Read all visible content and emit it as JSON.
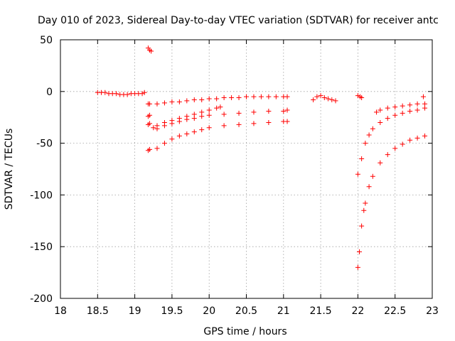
{
  "chart_data": {
    "type": "scatter",
    "title": "Day 010 of 2023, Sidereal Day-to-day VTEC variation (SDTVAR) for receiver antc",
    "xlabel": "GPS time / hours",
    "ylabel": "SDTVAR / TECUs",
    "xlim": [
      18,
      23
    ],
    "ylim": [
      -200,
      50
    ],
    "xticks": [
      "18",
      "18.5",
      "19",
      "19.5",
      "20",
      "20.5",
      "21",
      "21.5",
      "22",
      "22.5",
      "23"
    ],
    "yticks": [
      "50",
      "0",
      "-50",
      "-100",
      "-150",
      "-200"
    ],
    "grid": true,
    "marker": "+",
    "color": "#ff0000",
    "series": [
      {
        "name": "s1",
        "x": [
          18.5,
          18.55,
          18.6,
          18.65,
          18.7,
          18.75,
          18.8,
          18.85,
          18.9,
          18.95,
          19.0,
          19.05,
          19.1,
          19.13
        ],
        "y": [
          -1,
          -1,
          -1,
          -2,
          -2,
          -2,
          -3,
          -3,
          -3,
          -2,
          -2,
          -2,
          -2,
          -1
        ]
      },
      {
        "name": "s2",
        "x": [
          19.18,
          19.2,
          19.22
        ],
        "y": [
          42,
          40,
          39
        ]
      },
      {
        "name": "s3",
        "x": [
          19.18,
          19.2,
          19.3,
          19.4,
          19.5,
          19.6,
          19.7,
          19.8,
          19.9,
          20.0,
          20.1,
          20.2,
          20.3,
          20.4,
          20.5,
          20.6,
          20.7,
          20.8,
          20.9,
          21.0,
          21.05
        ],
        "y": [
          -12,
          -12,
          -12,
          -11,
          -10,
          -10,
          -9,
          -8,
          -8,
          -7,
          -7,
          -6,
          -6,
          -6,
          -5,
          -5,
          -5,
          -5,
          -5,
          -5,
          -5
        ]
      },
      {
        "name": "s4",
        "x": [
          19.18,
          19.2,
          19.25,
          19.3,
          19.4,
          19.5,
          19.6,
          19.7,
          19.8,
          19.9,
          20.0,
          20.1,
          20.15
        ],
        "y": [
          -24,
          -23,
          -35,
          -33,
          -30,
          -28,
          -26,
          -24,
          -22,
          -20,
          -18,
          -16,
          -15
        ]
      },
      {
        "name": "s5",
        "x": [
          19.18,
          19.2,
          19.3,
          19.4,
          19.5,
          19.6,
          19.7,
          19.8,
          19.9,
          20.0,
          20.2,
          20.4,
          20.6,
          20.8,
          21.0,
          21.05
        ],
        "y": [
          -32,
          -31,
          -36,
          -33,
          -31,
          -29,
          -27,
          -26,
          -24,
          -23,
          -22,
          -21,
          -20,
          -19,
          -19,
          -18
        ]
      },
      {
        "name": "s6",
        "x": [
          19.18,
          19.2,
          19.3,
          19.4,
          19.5,
          19.6,
          19.7,
          19.8,
          19.9,
          20.0,
          20.2,
          20.4,
          20.6,
          20.8,
          21.0,
          21.05
        ],
        "y": [
          -57,
          -56,
          -55,
          -50,
          -46,
          -43,
          -41,
          -39,
          -37,
          -35,
          -33,
          -32,
          -31,
          -30,
          -29,
          -29
        ]
      },
      {
        "name": "s7",
        "x": [
          21.4,
          21.45,
          21.5,
          21.55,
          21.6,
          21.65,
          21.7
        ],
        "y": [
          -8,
          -5,
          -4,
          -6,
          -7,
          -8,
          -9
        ]
      },
      {
        "name": "s8",
        "x": [
          22.0,
          22.03,
          22.05
        ],
        "y": [
          -4,
          -5,
          -6
        ]
      },
      {
        "name": "s9",
        "x": [
          22.0,
          22.05,
          22.1,
          22.15,
          22.2,
          22.3,
          22.4,
          22.5,
          22.6,
          22.7,
          22.8,
          22.9
        ],
        "y": [
          -80,
          -65,
          -50,
          -42,
          -36,
          -30,
          -26,
          -23,
          -21,
          -19,
          -18,
          -16
        ]
      },
      {
        "name": "s10",
        "x": [
          22.0,
          22.02,
          22.05,
          22.08,
          22.1,
          22.15,
          22.2,
          22.3,
          22.4,
          22.5,
          22.6,
          22.7,
          22.8,
          22.9
        ],
        "y": [
          -170,
          -155,
          -130,
          -115,
          -108,
          -92,
          -82,
          -69,
          -61,
          -55,
          -51,
          -47,
          -45,
          -43
        ]
      },
      {
        "name": "s11",
        "x": [
          22.25,
          22.3,
          22.4,
          22.5,
          22.6,
          22.7,
          22.8,
          22.9
        ],
        "y": [
          -20,
          -18,
          -16,
          -15,
          -14,
          -13,
          -12,
          -12
        ]
      },
      {
        "name": "s12",
        "x": [
          22.88
        ],
        "y": [
          -5
        ]
      }
    ]
  }
}
